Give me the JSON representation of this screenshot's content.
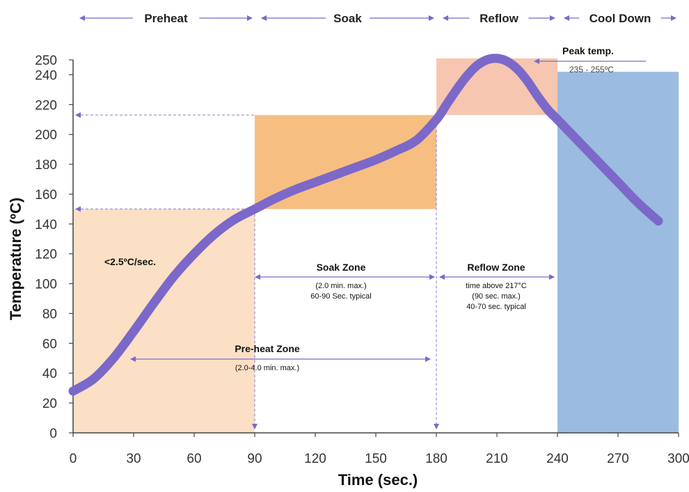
{
  "chart_data": {
    "type": "line",
    "title": "",
    "xlabel": "Time (sec.)",
    "ylabel": "Temperature (ºC)",
    "xlim": [
      0,
      300
    ],
    "ylim": [
      0,
      250
    ],
    "x_ticks": [
      "0",
      "30",
      "60",
      "90",
      "120",
      "150",
      "180",
      "210",
      "240",
      "270",
      "300"
    ],
    "y_ticks": [
      "0",
      "20",
      "40",
      "60",
      "80",
      "100",
      "120",
      "140",
      "160",
      "180",
      "200",
      "220",
      "240",
      "250"
    ],
    "grid": false,
    "legend": "none",
    "series": [
      {
        "color": "#7b68c9",
        "x": [
          0,
          10,
          20,
          30,
          40,
          50,
          60,
          70,
          80,
          90,
          100,
          110,
          120,
          130,
          140,
          150,
          160,
          170,
          180,
          185,
          190,
          195,
          200,
          205,
          210,
          215,
          220,
          225,
          230,
          235,
          240,
          250,
          260,
          270,
          280,
          290
        ],
        "y": [
          28,
          36,
          50,
          68,
          87,
          105,
          120,
          133,
          143,
          150,
          157,
          163,
          168,
          173,
          178,
          183,
          189,
          196,
          210,
          220,
          230,
          239,
          246,
          250,
          251,
          249,
          244,
          236,
          226,
          217,
          210,
          196,
          182,
          168,
          154,
          142
        ]
      }
    ],
    "phases": [
      {
        "label": "Preheat",
        "x_start": 0,
        "x_end": 90
      },
      {
        "label": "Soak",
        "x_start": 90,
        "x_end": 180
      },
      {
        "label": "Reflow",
        "x_start": 180,
        "x_end": 240
      },
      {
        "label": "Cool Down",
        "x_start": 240,
        "x_end": 300
      }
    ],
    "zones": [
      {
        "x_start": 0,
        "x_end": 90,
        "y_start": 0,
        "y_end": 150,
        "color": "#fbe0c5"
      },
      {
        "x_start": 90,
        "x_end": 180,
        "y_start": 150,
        "y_end": 213,
        "color": "#f7be82"
      },
      {
        "x_start": 180,
        "x_end": 240,
        "y_start": 213,
        "y_end": 251,
        "color": "#f6c6b0"
      },
      {
        "x_start": 240,
        "x_end": 300,
        "y_start": 0,
        "y_end": 242,
        "color": "#9bbbe0"
      }
    ],
    "reference_levels": [
      150,
      213
    ],
    "annotations": {
      "ramp_rate": "<2.5ºC/sec.",
      "soak_zone": {
        "title": "Soak Zone",
        "line1": "(2.0 min. max.)",
        "line2": "60-90 Sec. typical"
      },
      "reflow_zone": {
        "title": "Reflow Zone",
        "line1": "time above 217°C",
        "line2": "(90 sec. max.)",
        "line3": "40-70 sec. typical"
      },
      "preheat_zone": {
        "title": "Pre-heat Zone",
        "line1": "(2.0-4.0 min. max.)"
      },
      "peak": {
        "title": "Peak temp.",
        "range": "235 - 255ºC"
      }
    }
  }
}
